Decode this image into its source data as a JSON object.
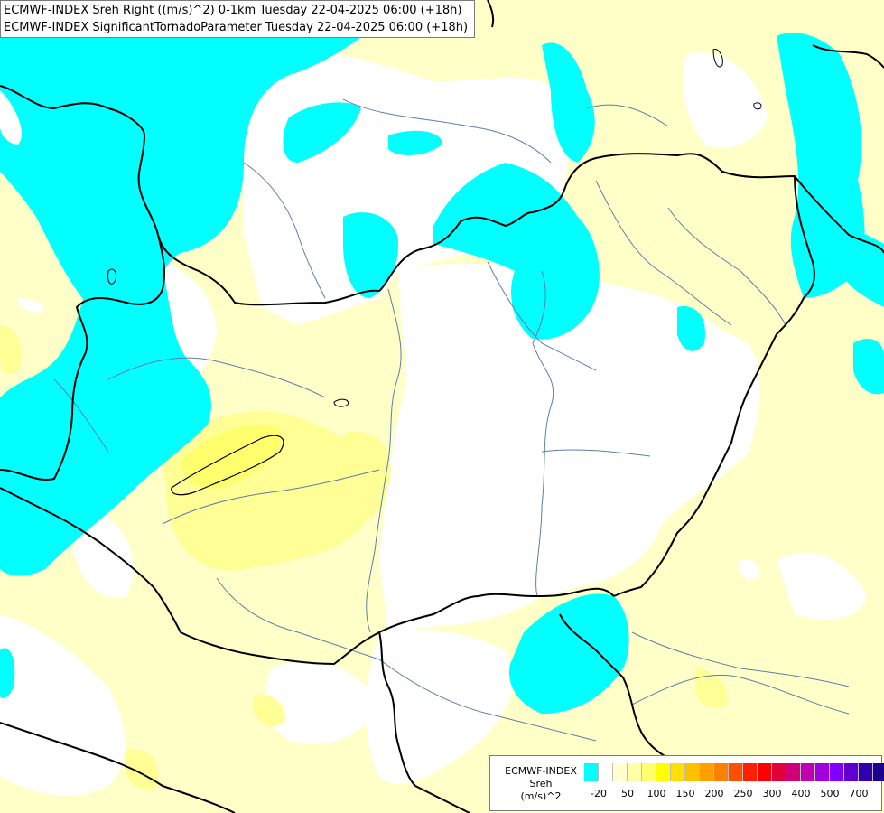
{
  "title": {
    "line1": "ECMWF-INDEX Sreh Right ((m/s)^2) 0-1km Tuesday 22-04-2025 06:00 (+18h)",
    "line2": "ECMWF-INDEX SignificantTornadoParameter Tuesday 22-04-2025 06:00 (+18h)"
  },
  "legend": {
    "line1": "ECMWF-INDEX",
    "line2": "Sreh",
    "line3": "(m/s)^2",
    "colors": [
      "#00ffff",
      "#ffffff",
      "#ffffd0",
      "#ffffa8",
      "#ffff70",
      "#ffff00",
      "#ffe000",
      "#ffc000",
      "#ffa000",
      "#ff8000",
      "#ff5000",
      "#ff2000",
      "#ff0000",
      "#e0003c",
      "#d00078",
      "#c000b0",
      "#a000e0",
      "#8000ff",
      "#6000d0",
      "#3000b0",
      "#1c0090",
      "#000070"
    ],
    "ticks": [
      "-20",
      "50",
      "100",
      "150",
      "200",
      "250",
      "300",
      "400",
      "500",
      "700"
    ]
  },
  "palette": {
    "cyan": "#00ffff",
    "pale_yellow": "#ffffc8",
    "yellow": "#ffff96",
    "bright_yellow": "#ffff50",
    "border": "#000000",
    "river": "#5a7fa8"
  }
}
